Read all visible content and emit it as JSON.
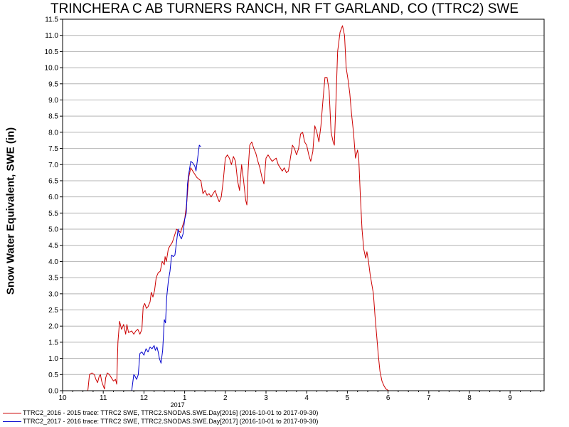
{
  "chart_data": {
    "type": "line",
    "title": "TRINCHERA C AB TURNERS RANCH, NR FT GARLAND, CO (TTRC2) SWE",
    "ylabel": "Snow Water Equivalent, SWE (in)",
    "xlabel": "",
    "ylim": [
      0,
      11.5
    ],
    "xlim": [
      0,
      12
    ],
    "x_unit": "months since Oct 1, 2016",
    "y_ticks": [
      "0.0",
      "0.5",
      "1.0",
      "1.5",
      "2.0",
      "2.5",
      "3.0",
      "3.5",
      "4.0",
      "4.5",
      "5.0",
      "5.5",
      "6.0",
      "6.5",
      "7.0",
      "7.5",
      "8.0",
      "8.5",
      "9.0",
      "9.5",
      "10.0",
      "10.5",
      "11.0",
      "11.5"
    ],
    "x_ticks": [
      {
        "x": 0,
        "label": "10"
      },
      {
        "x": 1,
        "label": "11"
      },
      {
        "x": 2,
        "label": "12"
      },
      {
        "x": 3,
        "label": "1"
      },
      {
        "x": 4,
        "label": "2"
      },
      {
        "x": 5,
        "label": "3"
      },
      {
        "x": 6,
        "label": "4"
      },
      {
        "x": 7,
        "label": "5"
      },
      {
        "x": 8,
        "label": "6"
      },
      {
        "x": 9,
        "label": "7"
      },
      {
        "x": 10,
        "label": "8"
      },
      {
        "x": 11,
        "label": "9"
      }
    ],
    "year_label": {
      "x": 3,
      "label": "2017"
    },
    "grid": true,
    "legend_position": "bottom",
    "series": [
      {
        "name": "TTRC2_2016 - 2015 trace: TTRC2 SWE, TTRC2.SNODAS.SWE.Day[2016] (2016-10-01 to 2017-09-30)",
        "color": "#cc0000",
        "points": [
          [
            0.62,
            0
          ],
          [
            0.66,
            0.5
          ],
          [
            0.72,
            0.55
          ],
          [
            0.78,
            0.5
          ],
          [
            0.82,
            0.35
          ],
          [
            0.86,
            0.25
          ],
          [
            0.9,
            0.45
          ],
          [
            0.93,
            0.5
          ],
          [
            0.96,
            0.3
          ],
          [
            1.0,
            0.15
          ],
          [
            1.03,
            0.05
          ],
          [
            1.06,
            0.4
          ],
          [
            1.1,
            0.55
          ],
          [
            1.15,
            0.5
          ],
          [
            1.2,
            0.4
          ],
          [
            1.25,
            0.3
          ],
          [
            1.3,
            0.35
          ],
          [
            1.33,
            0.2
          ],
          [
            1.36,
            1.5
          ],
          [
            1.4,
            2.15
          ],
          [
            1.45,
            1.9
          ],
          [
            1.5,
            2.05
          ],
          [
            1.55,
            1.75
          ],
          [
            1.58,
            2.05
          ],
          [
            1.62,
            1.8
          ],
          [
            1.7,
            1.85
          ],
          [
            1.75,
            1.75
          ],
          [
            1.8,
            1.85
          ],
          [
            1.85,
            1.9
          ],
          [
            1.9,
            1.75
          ],
          [
            1.95,
            1.9
          ],
          [
            1.98,
            2.6
          ],
          [
            2.02,
            2.7
          ],
          [
            2.06,
            2.55
          ],
          [
            2.1,
            2.6
          ],
          [
            2.15,
            2.75
          ],
          [
            2.18,
            3.05
          ],
          [
            2.22,
            2.9
          ],
          [
            2.26,
            3.1
          ],
          [
            2.3,
            3.5
          ],
          [
            2.35,
            3.65
          ],
          [
            2.4,
            3.7
          ],
          [
            2.45,
            4.0
          ],
          [
            2.5,
            3.9
          ],
          [
            2.52,
            4.15
          ],
          [
            2.55,
            4.0
          ],
          [
            2.6,
            4.4
          ],
          [
            2.65,
            4.5
          ],
          [
            2.7,
            4.6
          ],
          [
            2.75,
            4.8
          ],
          [
            2.8,
            5.0
          ],
          [
            2.85,
            4.95
          ],
          [
            2.9,
            4.9
          ],
          [
            2.95,
            5.1
          ],
          [
            3.0,
            5.3
          ],
          [
            3.05,
            5.8
          ],
          [
            3.1,
            6.6
          ],
          [
            3.15,
            6.9
          ],
          [
            3.2,
            6.8
          ],
          [
            3.25,
            6.7
          ],
          [
            3.3,
            6.6
          ],
          [
            3.35,
            6.55
          ],
          [
            3.4,
            6.5
          ],
          [
            3.45,
            6.1
          ],
          [
            3.5,
            6.2
          ],
          [
            3.55,
            6.05
          ],
          [
            3.6,
            6.1
          ],
          [
            3.65,
            6.0
          ],
          [
            3.7,
            6.1
          ],
          [
            3.75,
            6.2
          ],
          [
            3.8,
            6.0
          ],
          [
            3.85,
            5.85
          ],
          [
            3.9,
            6.0
          ],
          [
            3.95,
            6.5
          ],
          [
            4.0,
            7.2
          ],
          [
            4.05,
            7.3
          ],
          [
            4.1,
            7.2
          ],
          [
            4.15,
            7.0
          ],
          [
            4.2,
            7.25
          ],
          [
            4.25,
            7.1
          ],
          [
            4.3,
            6.5
          ],
          [
            4.35,
            6.2
          ],
          [
            4.4,
            7.0
          ],
          [
            4.45,
            6.5
          ],
          [
            4.5,
            5.9
          ],
          [
            4.53,
            5.75
          ],
          [
            4.56,
            6.8
          ],
          [
            4.6,
            7.6
          ],
          [
            4.65,
            7.7
          ],
          [
            4.7,
            7.5
          ],
          [
            4.75,
            7.35
          ],
          [
            4.8,
            7.1
          ],
          [
            4.85,
            6.9
          ],
          [
            4.9,
            6.6
          ],
          [
            4.95,
            6.4
          ],
          [
            5.0,
            7.2
          ],
          [
            5.05,
            7.3
          ],
          [
            5.1,
            7.2
          ],
          [
            5.15,
            7.1
          ],
          [
            5.2,
            7.15
          ],
          [
            5.25,
            7.2
          ],
          [
            5.3,
            7.0
          ],
          [
            5.35,
            6.9
          ],
          [
            5.4,
            6.8
          ],
          [
            5.45,
            6.9
          ],
          [
            5.5,
            6.75
          ],
          [
            5.55,
            6.8
          ],
          [
            5.6,
            7.2
          ],
          [
            5.65,
            7.6
          ],
          [
            5.7,
            7.5
          ],
          [
            5.75,
            7.3
          ],
          [
            5.8,
            7.5
          ],
          [
            5.85,
            7.95
          ],
          [
            5.9,
            8.0
          ],
          [
            5.95,
            7.7
          ],
          [
            6.0,
            7.6
          ],
          [
            6.05,
            7.3
          ],
          [
            6.1,
            7.1
          ],
          [
            6.15,
            7.4
          ],
          [
            6.2,
            8.2
          ],
          [
            6.25,
            8.0
          ],
          [
            6.3,
            7.7
          ],
          [
            6.35,
            8.2
          ],
          [
            6.4,
            9.0
          ],
          [
            6.45,
            9.7
          ],
          [
            6.5,
            9.7
          ],
          [
            6.55,
            9.3
          ],
          [
            6.6,
            8.0
          ],
          [
            6.65,
            7.7
          ],
          [
            6.68,
            7.6
          ],
          [
            6.72,
            9.0
          ],
          [
            6.76,
            10.5
          ],
          [
            6.82,
            11.1
          ],
          [
            6.88,
            11.3
          ],
          [
            6.93,
            11.0
          ],
          [
            6.97,
            10.0
          ],
          [
            7.02,
            9.6
          ],
          [
            7.06,
            9.2
          ],
          [
            7.1,
            8.6
          ],
          [
            7.15,
            8.0
          ],
          [
            7.2,
            7.2
          ],
          [
            7.25,
            7.45
          ],
          [
            7.28,
            7.2
          ],
          [
            7.32,
            6.0
          ],
          [
            7.36,
            5.0
          ],
          [
            7.4,
            4.4
          ],
          [
            7.45,
            4.1
          ],
          [
            7.48,
            4.3
          ],
          [
            7.52,
            4.0
          ],
          [
            7.56,
            3.6
          ],
          [
            7.6,
            3.3
          ],
          [
            7.64,
            3.0
          ],
          [
            7.68,
            2.3
          ],
          [
            7.72,
            1.7
          ],
          [
            7.76,
            1.1
          ],
          [
            7.8,
            0.6
          ],
          [
            7.85,
            0.3
          ],
          [
            7.9,
            0.15
          ],
          [
            7.95,
            0.05
          ],
          [
            8.02,
            0
          ],
          [
            8.1,
            0
          ]
        ]
      },
      {
        "name": "TTRC2_2017 - 2016 trace: TTRC2 SWE, TTRC2.SNODAS.SWE.Day[2017] (2016-10-01 to 2017-09-30)",
        "color": "#0000cc",
        "points": [
          [
            1.7,
            0
          ],
          [
            1.75,
            0.5
          ],
          [
            1.78,
            0.45
          ],
          [
            1.82,
            0.35
          ],
          [
            1.86,
            0.5
          ],
          [
            1.9,
            1.15
          ],
          [
            1.95,
            1.2
          ],
          [
            2.0,
            1.1
          ],
          [
            2.05,
            1.3
          ],
          [
            2.1,
            1.2
          ],
          [
            2.15,
            1.35
          ],
          [
            2.2,
            1.3
          ],
          [
            2.25,
            1.4
          ],
          [
            2.28,
            1.25
          ],
          [
            2.32,
            1.35
          ],
          [
            2.35,
            1.2
          ],
          [
            2.38,
            1.0
          ],
          [
            2.42,
            0.85
          ],
          [
            2.46,
            1.25
          ],
          [
            2.5,
            2.2
          ],
          [
            2.53,
            2.1
          ],
          [
            2.56,
            2.9
          ],
          [
            2.6,
            3.4
          ],
          [
            2.64,
            3.7
          ],
          [
            2.68,
            4.2
          ],
          [
            2.72,
            4.15
          ],
          [
            2.76,
            4.2
          ],
          [
            2.8,
            4.6
          ],
          [
            2.84,
            5.0
          ],
          [
            2.88,
            4.8
          ],
          [
            2.92,
            4.7
          ],
          [
            2.96,
            4.85
          ],
          [
            3.0,
            5.3
          ],
          [
            3.04,
            5.5
          ],
          [
            3.07,
            6.4
          ],
          [
            3.1,
            6.7
          ],
          [
            3.15,
            7.1
          ],
          [
            3.2,
            7.05
          ],
          [
            3.25,
            6.95
          ],
          [
            3.28,
            6.8
          ],
          [
            3.32,
            7.2
          ],
          [
            3.36,
            7.6
          ],
          [
            3.4,
            7.55
          ]
        ]
      }
    ]
  }
}
